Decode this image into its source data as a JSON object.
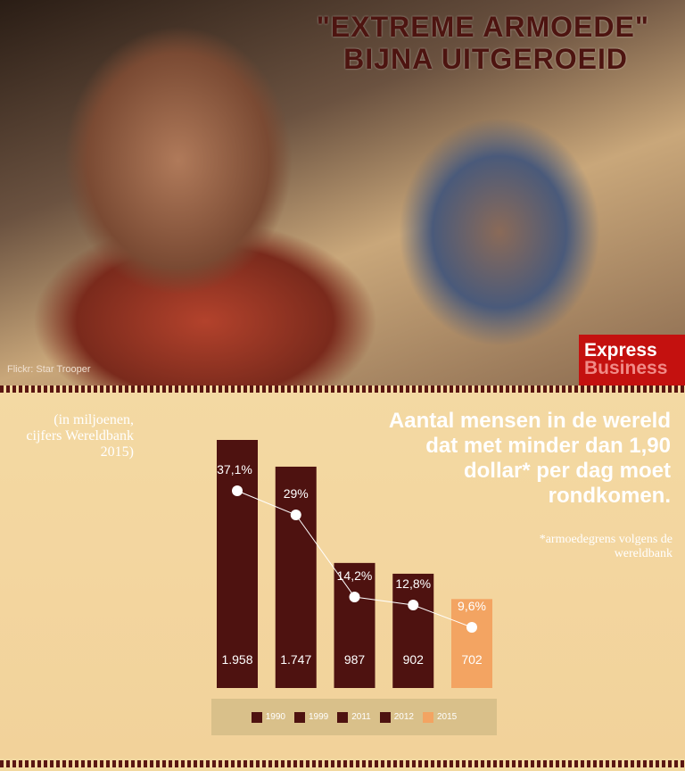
{
  "header": {
    "title_line1": "\"EXTREME ARMOEDE\"",
    "title_line2": "BIJNA UITGEROEID",
    "photo_credit": "Flickr: Star Trooper",
    "logo": {
      "line1": "Express",
      "line2": "Business"
    }
  },
  "colors": {
    "bar": "#4e1210",
    "highlight": "#f3a462",
    "line": "#ffffff",
    "title": "#4d1410"
  },
  "chart_data": {
    "type": "bar",
    "title": "Aantal mensen in de wereld  dat met minder dan 1,90 dollar* per dag moet rondkomen.",
    "unit_note": "(in miljoenen, cijfers Wereldbank 2015)",
    "footnote": "*armoedegrens volgens de wereldbank",
    "categories": [
      "1990",
      "1999",
      "2011",
      "2012",
      "2015"
    ],
    "values": [
      1958,
      1747,
      987,
      902,
      702
    ],
    "value_labels": [
      "1.958",
      "1.747",
      "987",
      "902",
      "702"
    ],
    "percent_series": {
      "type": "line",
      "values": [
        37.1,
        29,
        14.2,
        12.8,
        9.6
      ],
      "labels": [
        "37,1%",
        "29%",
        "14,2%",
        "12,8%",
        "9,6%"
      ]
    },
    "legend": [
      "1990",
      "1999",
      "2011",
      "2012",
      "2015"
    ],
    "legend_placement": "bottom",
    "grid": false
  }
}
